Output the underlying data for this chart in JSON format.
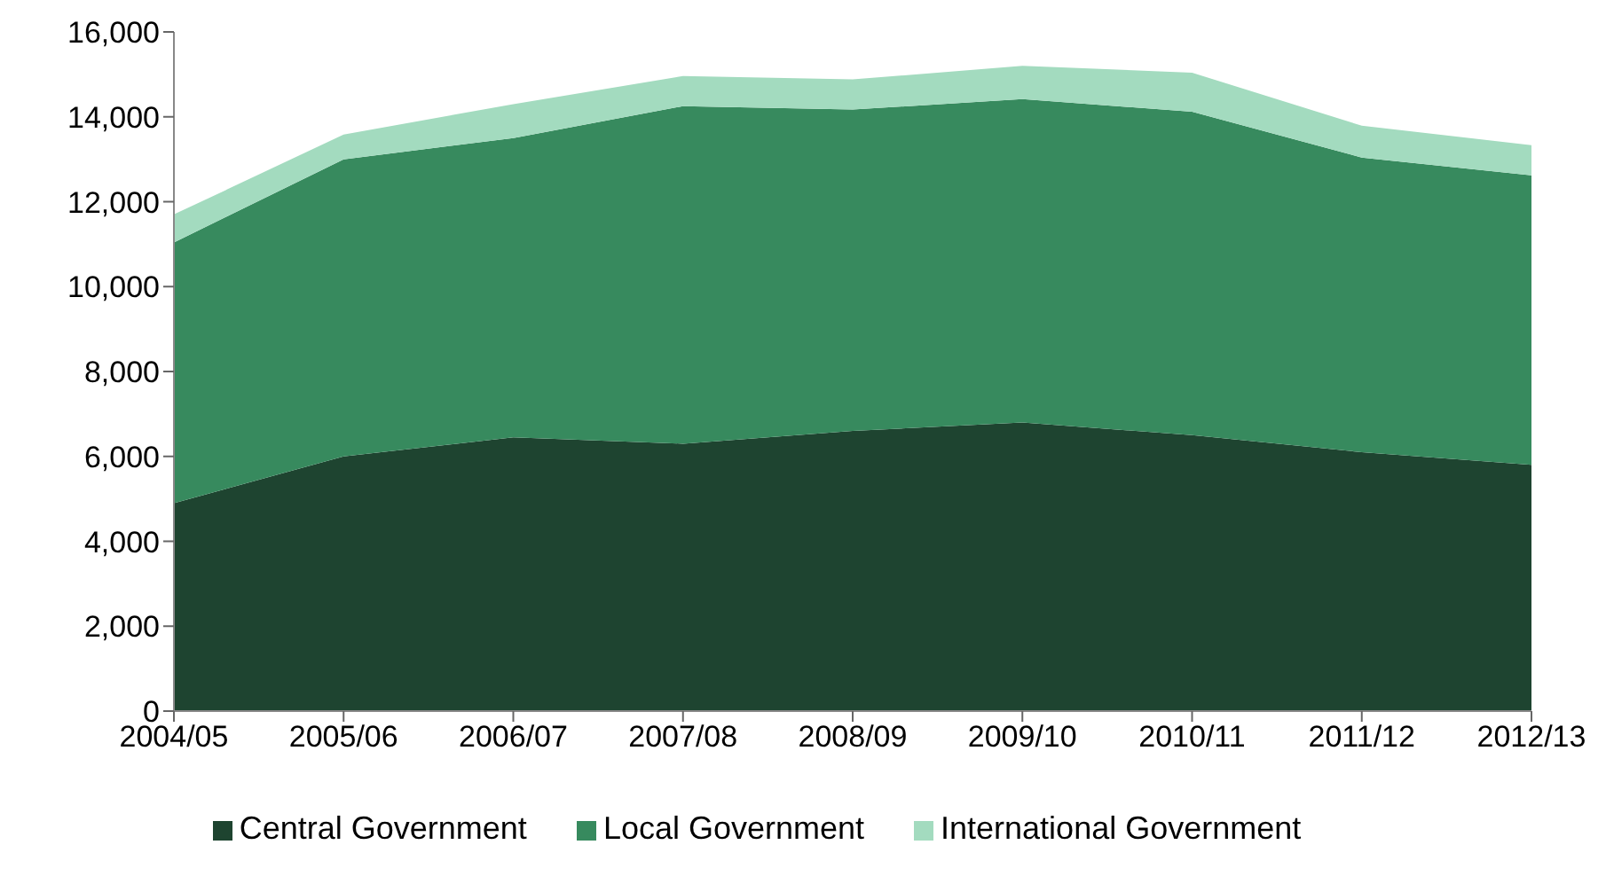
{
  "chart_data": {
    "type": "area",
    "stacked": true,
    "categories": [
      "2004/05",
      "2005/06",
      "2006/07",
      "2007/08",
      "2008/09",
      "2009/10",
      "2010/11",
      "2011/12",
      "2012/13"
    ],
    "series": [
      {
        "name": "Central Government",
        "color": "#1e4430",
        "values": [
          4900,
          6000,
          6450,
          6300,
          6600,
          6800,
          6500,
          6100,
          5800
        ]
      },
      {
        "name": "Local Government",
        "color": "#378a5e",
        "values": [
          6140,
          7000,
          7050,
          7950,
          7570,
          7620,
          7620,
          6940,
          6820
        ]
      },
      {
        "name": "International Government",
        "color": "#a3dbbf",
        "values": [
          660,
          580,
          800,
          710,
          710,
          780,
          920,
          750,
          710
        ]
      }
    ],
    "ylim": [
      0,
      16000
    ],
    "yticks": [
      0,
      {
        "value": 2000,
        "label": "2,000"
      },
      {
        "value": 4000,
        "label": "4,000"
      },
      {
        "value": 6000,
        "label": "6,000"
      },
      {
        "value": 8000,
        "label": "8,000"
      },
      {
        "value": 10000,
        "label": "10,000"
      },
      {
        "value": 12000,
        "label": "12,000"
      },
      {
        "value": 14000,
        "label": "14,000"
      },
      {
        "value": 16000,
        "label": "16,000"
      }
    ],
    "grid": false,
    "legend": "bottom"
  }
}
